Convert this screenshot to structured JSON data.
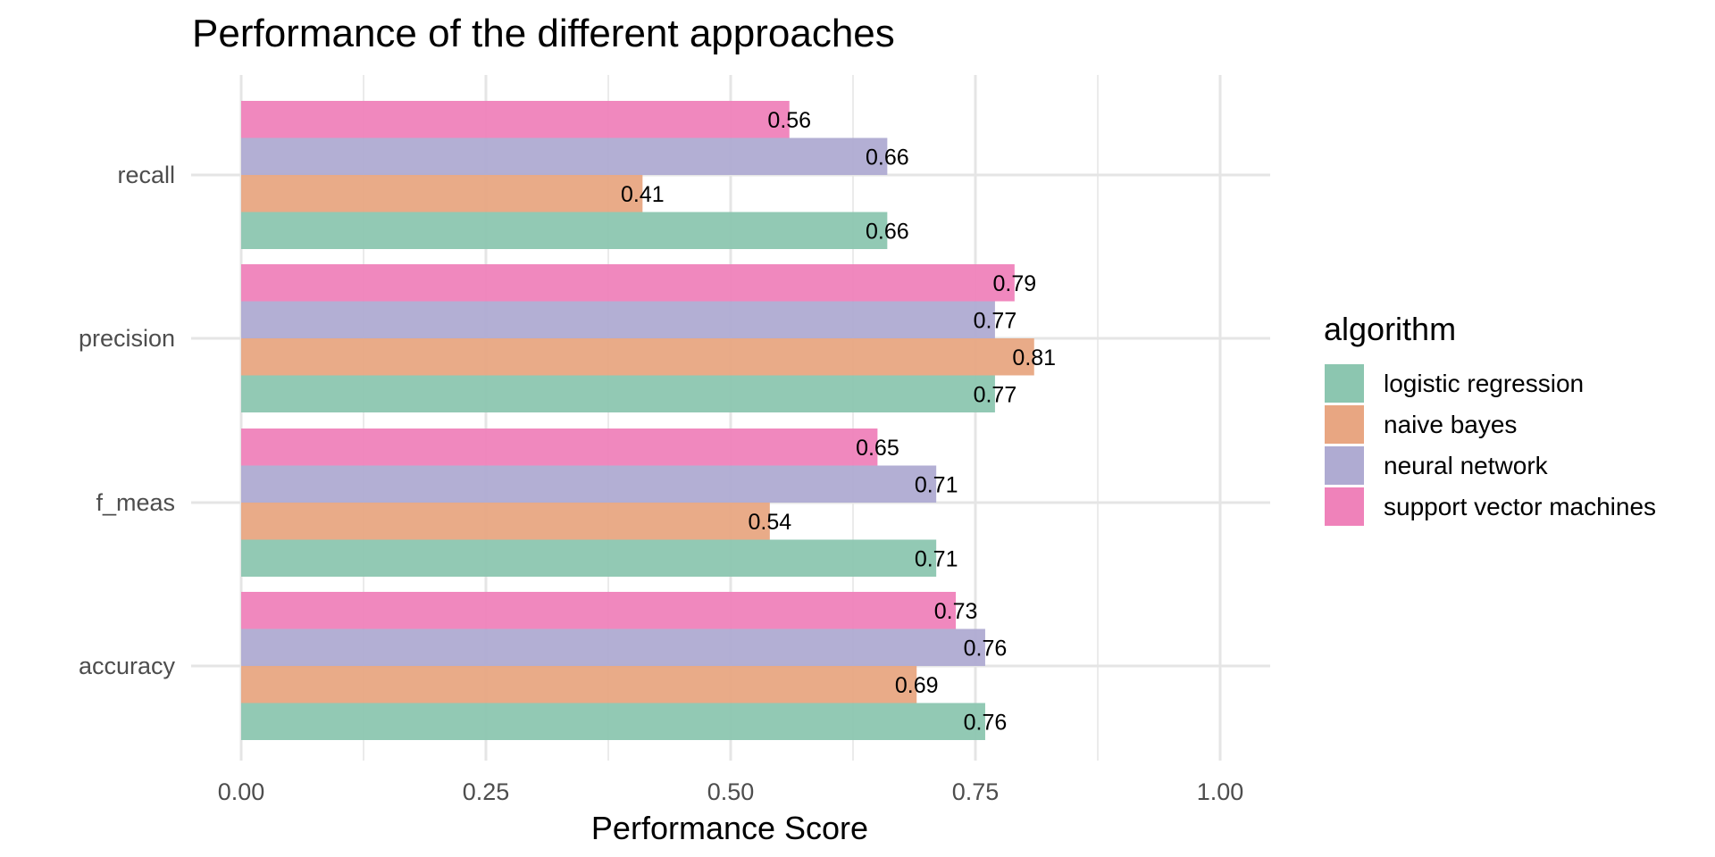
{
  "chart_data": {
    "type": "bar",
    "orientation": "horizontal",
    "title": "Performance of the different approaches",
    "xlabel": "Performance Score",
    "ylabel": "",
    "xlim": [
      0,
      1
    ],
    "x_ticks": [
      0,
      0.25,
      0.5,
      0.75,
      1
    ],
    "x_tick_labels": [
      "0.00",
      "0.25",
      "0.50",
      "0.75",
      "1.00"
    ],
    "categories": [
      "recall",
      "precision",
      "f_meas",
      "accuracy"
    ],
    "grid": true,
    "legend": {
      "title": "algorithm",
      "position": "right"
    },
    "series": [
      {
        "name": "logistic regression",
        "color": "#8cc6b0",
        "values": [
          0.66,
          0.77,
          0.71,
          0.76
        ],
        "labels": [
          "0.66",
          "0.77",
          "0.71",
          "0.76"
        ]
      },
      {
        "name": "naive bayes",
        "color": "#e8a682",
        "values": [
          0.41,
          0.81,
          0.54,
          0.69
        ],
        "labels": [
          "0.41",
          "0.81",
          "0.54",
          "0.69"
        ]
      },
      {
        "name": "neural network",
        "color": "#afabd2",
        "values": [
          0.66,
          0.77,
          0.71,
          0.76
        ],
        "labels": [
          "0.66",
          "0.77",
          "0.71",
          "0.76"
        ]
      },
      {
        "name": "support vector machines",
        "color": "#ef82ba",
        "values": [
          0.56,
          0.79,
          0.65,
          0.73
        ],
        "labels": [
          "0.56",
          "0.79",
          "0.65",
          "0.73"
        ]
      }
    ]
  }
}
